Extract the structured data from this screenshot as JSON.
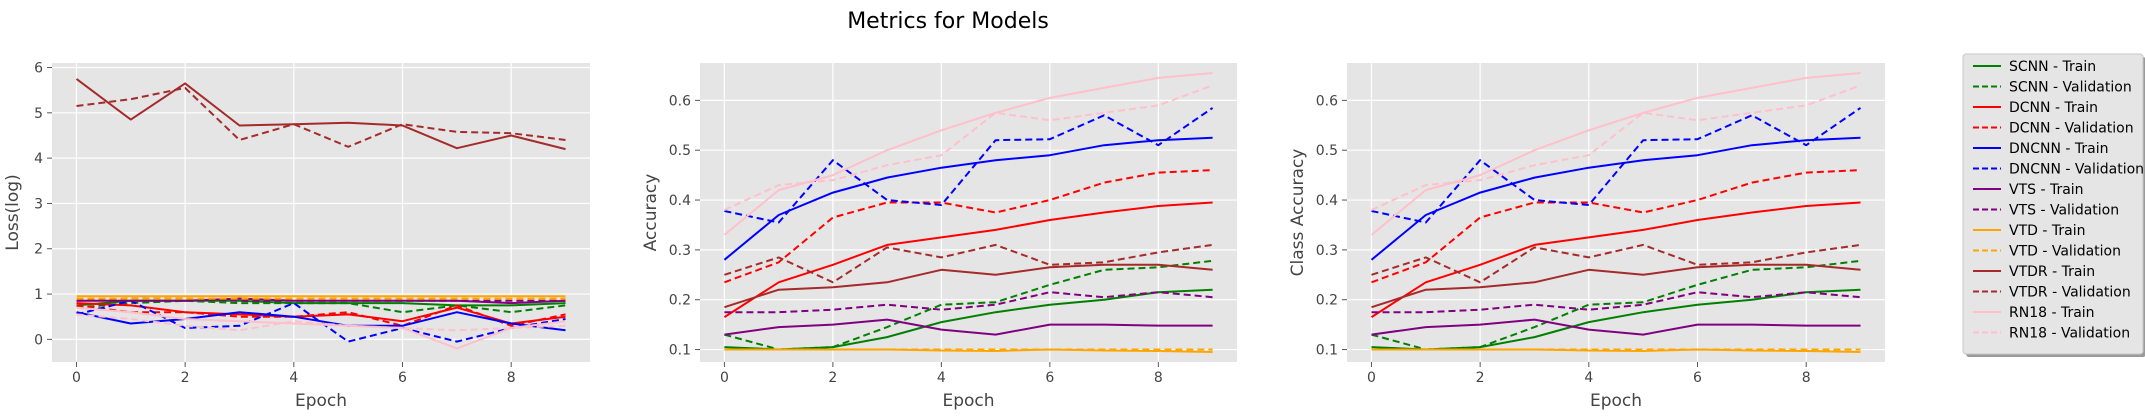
{
  "figure": {
    "suptitle": "Metrics for Models"
  },
  "legend": {
    "placement": "right",
    "entries": [
      {
        "label": "SCNN - Train",
        "color": "#008000",
        "dash": false
      },
      {
        "label": "SCNN - Validation",
        "color": "#008000",
        "dash": true
      },
      {
        "label": "DCNN - Train",
        "color": "#ff0000",
        "dash": false
      },
      {
        "label": "DCNN - Validation",
        "color": "#ff0000",
        "dash": true
      },
      {
        "label": "DNCNN - Train",
        "color": "#0000ff",
        "dash": false
      },
      {
        "label": "DNCNN - Validation",
        "color": "#0000ff",
        "dash": true
      },
      {
        "label": "VTS - Train",
        "color": "#800080",
        "dash": false
      },
      {
        "label": "VTS - Validation",
        "color": "#800080",
        "dash": true
      },
      {
        "label": "VTD - Train",
        "color": "#ffa500",
        "dash": false
      },
      {
        "label": "VTD - Validation",
        "color": "#ffa500",
        "dash": true
      },
      {
        "label": "VTDR - Train",
        "color": "#a52a2a",
        "dash": false
      },
      {
        "label": "VTDR - Validation",
        "color": "#a52a2a",
        "dash": true
      },
      {
        "label": "RN18 - Train",
        "color": "#ffc0cb",
        "dash": false
      },
      {
        "label": "RN18 - Validation",
        "color": "#ffc0cb",
        "dash": true
      }
    ]
  },
  "chart_data": [
    {
      "type": "line",
      "title": "",
      "xlabel": "Epoch",
      "ylabel": "Loss(log)",
      "xlim": [
        -0.45,
        9.45
      ],
      "ylim": [
        -0.5,
        6.1
      ],
      "xticks": [
        0,
        2,
        4,
        6,
        8
      ],
      "yticks": [
        0,
        1,
        2,
        3,
        4,
        5,
        6
      ],
      "grid": true,
      "x": [
        0,
        1,
        2,
        3,
        4,
        5,
        6,
        7,
        8,
        9
      ],
      "series": [
        {
          "name": "SCNN - Train",
          "color": "#008000",
          "dash": false,
          "values": [
            0.75,
            0.85,
            0.85,
            0.85,
            0.8,
            0.8,
            0.8,
            0.75,
            0.75,
            0.8
          ]
        },
        {
          "name": "SCNN - Validation",
          "color": "#008000",
          "dash": true,
          "values": [
            0.7,
            0.8,
            0.85,
            0.8,
            0.8,
            0.8,
            0.6,
            0.75,
            0.6,
            0.75
          ]
        },
        {
          "name": "DCNN - Train",
          "color": "#ff0000",
          "dash": false,
          "values": [
            0.8,
            0.75,
            0.6,
            0.55,
            0.5,
            0.55,
            0.4,
            0.7,
            0.35,
            0.5
          ]
        },
        {
          "name": "DCNN - Validation",
          "color": "#ff0000",
          "dash": true,
          "values": [
            0.75,
            0.6,
            0.6,
            0.5,
            0.5,
            0.6,
            0.3,
            0.75,
            0.3,
            0.55
          ]
        },
        {
          "name": "DNCNN - Train",
          "color": "#0000ff",
          "dash": false,
          "values": [
            0.6,
            0.35,
            0.45,
            0.6,
            0.5,
            0.3,
            0.3,
            0.6,
            0.35,
            0.2
          ]
        },
        {
          "name": "DNCNN - Validation",
          "color": "#0000ff",
          "dash": true,
          "values": [
            0.55,
            0.85,
            0.25,
            0.3,
            0.8,
            -0.05,
            0.25,
            -0.05,
            0.25,
            0.45
          ]
        },
        {
          "name": "VTS - Train",
          "color": "#800080",
          "dash": false,
          "values": [
            0.85,
            0.85,
            0.85,
            0.9,
            0.85,
            0.85,
            0.85,
            0.85,
            0.8,
            0.85
          ]
        },
        {
          "name": "VTS - Validation",
          "color": "#800080",
          "dash": true,
          "values": [
            0.85,
            0.9,
            0.9,
            0.85,
            0.85,
            0.85,
            0.85,
            0.85,
            0.85,
            0.85
          ]
        },
        {
          "name": "VTD - Train",
          "color": "#ffa500",
          "dash": false,
          "values": [
            0.95,
            0.95,
            0.95,
            0.95,
            0.95,
            0.95,
            0.95,
            0.95,
            0.95,
            0.95
          ]
        },
        {
          "name": "VTD - Validation",
          "color": "#ffa500",
          "dash": true,
          "values": [
            0.9,
            0.9,
            0.9,
            0.9,
            0.9,
            0.9,
            0.9,
            0.9,
            0.9,
            0.9
          ]
        },
        {
          "name": "VTDR - Train",
          "color": "#a52a2a",
          "dash": false,
          "values": [
            5.75,
            4.85,
            5.65,
            4.72,
            4.75,
            4.78,
            4.72,
            4.22,
            4.5,
            4.2
          ]
        },
        {
          "name": "VTDR - Validation",
          "color": "#a52a2a",
          "dash": true,
          "values": [
            5.15,
            5.3,
            5.55,
            4.4,
            4.75,
            4.25,
            4.75,
            4.58,
            4.55,
            4.4
          ]
        },
        {
          "name": "RN18 - Train",
          "color": "#ffc0cb",
          "dash": false,
          "values": [
            0.7,
            0.6,
            0.45,
            0.4,
            0.35,
            0.3,
            0.25,
            -0.2,
            0.25,
            0.4
          ]
        },
        {
          "name": "RN18 - Validation",
          "color": "#ffc0cb",
          "dash": true,
          "values": [
            0.55,
            0.45,
            0.3,
            0.2,
            0.4,
            0.3,
            0.25,
            0.2,
            0.25,
            0.3
          ]
        }
      ]
    },
    {
      "type": "line",
      "title": "",
      "xlabel": "Epoch",
      "ylabel": "Accuracy",
      "xlim": [
        -0.45,
        9.45
      ],
      "ylim": [
        0.075,
        0.675
      ],
      "xticks": [
        0,
        2,
        4,
        6,
        8
      ],
      "yticks": [
        0.1,
        0.2,
        0.3,
        0.4,
        0.5,
        0.6
      ],
      "grid": true,
      "x": [
        0,
        1,
        2,
        3,
        4,
        5,
        6,
        7,
        8,
        9
      ],
      "series": [
        {
          "name": "SCNN - Train",
          "color": "#008000",
          "dash": false,
          "values": [
            0.105,
            0.1,
            0.105,
            0.125,
            0.155,
            0.175,
            0.19,
            0.2,
            0.215,
            0.22
          ]
        },
        {
          "name": "SCNN - Validation",
          "color": "#008000",
          "dash": true,
          "values": [
            0.13,
            0.1,
            0.105,
            0.145,
            0.19,
            0.195,
            0.23,
            0.26,
            0.265,
            0.278
          ]
        },
        {
          "name": "DCNN - Train",
          "color": "#ff0000",
          "dash": false,
          "values": [
            0.165,
            0.235,
            0.27,
            0.31,
            0.325,
            0.34,
            0.36,
            0.375,
            0.388,
            0.395
          ]
        },
        {
          "name": "DCNN - Validation",
          "color": "#ff0000",
          "dash": true,
          "values": [
            0.235,
            0.275,
            0.365,
            0.395,
            0.395,
            0.375,
            0.4,
            0.435,
            0.455,
            0.46
          ]
        },
        {
          "name": "DNCNN - Train",
          "color": "#0000ff",
          "dash": false,
          "values": [
            0.28,
            0.37,
            0.415,
            0.445,
            0.465,
            0.48,
            0.49,
            0.51,
            0.52,
            0.525
          ]
        },
        {
          "name": "DNCNN - Validation",
          "color": "#0000ff",
          "dash": true,
          "values": [
            0.378,
            0.355,
            0.48,
            0.4,
            0.39,
            0.52,
            0.522,
            0.57,
            0.51,
            0.585
          ]
        },
        {
          "name": "VTS - Train",
          "color": "#800080",
          "dash": false,
          "values": [
            0.13,
            0.145,
            0.15,
            0.16,
            0.14,
            0.13,
            0.15,
            0.15,
            0.148,
            0.148
          ]
        },
        {
          "name": "VTS - Validation",
          "color": "#800080",
          "dash": true,
          "values": [
            0.175,
            0.175,
            0.18,
            0.19,
            0.18,
            0.19,
            0.215,
            0.205,
            0.215,
            0.205
          ]
        },
        {
          "name": "VTD - Train",
          "color": "#ffa500",
          "dash": false,
          "values": [
            0.1,
            0.1,
            0.1,
            0.1,
            0.098,
            0.097,
            0.1,
            0.098,
            0.097,
            0.095
          ]
        },
        {
          "name": "VTD - Validation",
          "color": "#ffa500",
          "dash": true,
          "values": [
            0.1,
            0.1,
            0.1,
            0.1,
            0.1,
            0.1,
            0.1,
            0.1,
            0.1,
            0.1
          ]
        },
        {
          "name": "VTDR - Train",
          "color": "#a52a2a",
          "dash": false,
          "values": [
            0.185,
            0.22,
            0.225,
            0.235,
            0.26,
            0.25,
            0.265,
            0.27,
            0.27,
            0.26
          ]
        },
        {
          "name": "VTDR - Validation",
          "color": "#a52a2a",
          "dash": true,
          "values": [
            0.25,
            0.285,
            0.235,
            0.305,
            0.285,
            0.31,
            0.27,
            0.275,
            0.295,
            0.31
          ]
        },
        {
          "name": "RN18 - Train",
          "color": "#ffc0cb",
          "dash": false,
          "values": [
            0.33,
            0.42,
            0.45,
            0.5,
            0.54,
            0.575,
            0.605,
            0.625,
            0.645,
            0.655
          ]
        },
        {
          "name": "RN18 - Validation",
          "color": "#ffc0cb",
          "dash": true,
          "values": [
            0.38,
            0.43,
            0.44,
            0.47,
            0.49,
            0.575,
            0.56,
            0.575,
            0.59,
            0.63
          ]
        }
      ]
    },
    {
      "type": "line",
      "title": "",
      "xlabel": "Epoch",
      "ylabel": "Class Accuracy",
      "xlim": [
        -0.45,
        9.45
      ],
      "ylim": [
        0.075,
        0.675
      ],
      "xticks": [
        0,
        2,
        4,
        6,
        8
      ],
      "yticks": [
        0.1,
        0.2,
        0.3,
        0.4,
        0.5,
        0.6
      ],
      "grid": true,
      "x": [
        0,
        1,
        2,
        3,
        4,
        5,
        6,
        7,
        8,
        9
      ],
      "series": [
        {
          "name": "SCNN - Train",
          "color": "#008000",
          "dash": false,
          "values": [
            0.105,
            0.1,
            0.105,
            0.125,
            0.155,
            0.175,
            0.19,
            0.2,
            0.215,
            0.22
          ]
        },
        {
          "name": "SCNN - Validation",
          "color": "#008000",
          "dash": true,
          "values": [
            0.13,
            0.1,
            0.105,
            0.145,
            0.19,
            0.195,
            0.23,
            0.26,
            0.265,
            0.278
          ]
        },
        {
          "name": "DCNN - Train",
          "color": "#ff0000",
          "dash": false,
          "values": [
            0.165,
            0.235,
            0.27,
            0.31,
            0.325,
            0.34,
            0.36,
            0.375,
            0.388,
            0.395
          ]
        },
        {
          "name": "DCNN - Validation",
          "color": "#ff0000",
          "dash": true,
          "values": [
            0.235,
            0.275,
            0.365,
            0.395,
            0.395,
            0.375,
            0.4,
            0.435,
            0.455,
            0.46
          ]
        },
        {
          "name": "DNCNN - Train",
          "color": "#0000ff",
          "dash": false,
          "values": [
            0.28,
            0.37,
            0.415,
            0.445,
            0.465,
            0.48,
            0.49,
            0.51,
            0.52,
            0.525
          ]
        },
        {
          "name": "DNCNN - Validation",
          "color": "#0000ff",
          "dash": true,
          "values": [
            0.378,
            0.355,
            0.48,
            0.4,
            0.39,
            0.52,
            0.522,
            0.57,
            0.51,
            0.585
          ]
        },
        {
          "name": "VTS - Train",
          "color": "#800080",
          "dash": false,
          "values": [
            0.13,
            0.145,
            0.15,
            0.16,
            0.14,
            0.13,
            0.15,
            0.15,
            0.148,
            0.148
          ]
        },
        {
          "name": "VTS - Validation",
          "color": "#800080",
          "dash": true,
          "values": [
            0.175,
            0.175,
            0.18,
            0.19,
            0.18,
            0.19,
            0.215,
            0.205,
            0.215,
            0.205
          ]
        },
        {
          "name": "VTD - Train",
          "color": "#ffa500",
          "dash": false,
          "values": [
            0.1,
            0.1,
            0.1,
            0.1,
            0.098,
            0.097,
            0.1,
            0.098,
            0.097,
            0.095
          ]
        },
        {
          "name": "VTD - Validation",
          "color": "#ffa500",
          "dash": true,
          "values": [
            0.1,
            0.1,
            0.1,
            0.1,
            0.1,
            0.1,
            0.1,
            0.1,
            0.1,
            0.1
          ]
        },
        {
          "name": "VTDR - Train",
          "color": "#a52a2a",
          "dash": false,
          "values": [
            0.185,
            0.22,
            0.225,
            0.235,
            0.26,
            0.25,
            0.265,
            0.27,
            0.27,
            0.26
          ]
        },
        {
          "name": "VTDR - Validation",
          "color": "#a52a2a",
          "dash": true,
          "values": [
            0.25,
            0.285,
            0.235,
            0.305,
            0.285,
            0.31,
            0.27,
            0.275,
            0.295,
            0.31
          ]
        },
        {
          "name": "RN18 - Train",
          "color": "#ffc0cb",
          "dash": false,
          "values": [
            0.33,
            0.42,
            0.45,
            0.5,
            0.54,
            0.575,
            0.605,
            0.625,
            0.645,
            0.655
          ]
        },
        {
          "name": "RN18 - Validation",
          "color": "#ffc0cb",
          "dash": true,
          "values": [
            0.38,
            0.43,
            0.44,
            0.47,
            0.49,
            0.575,
            0.56,
            0.575,
            0.59,
            0.63
          ]
        }
      ]
    }
  ]
}
